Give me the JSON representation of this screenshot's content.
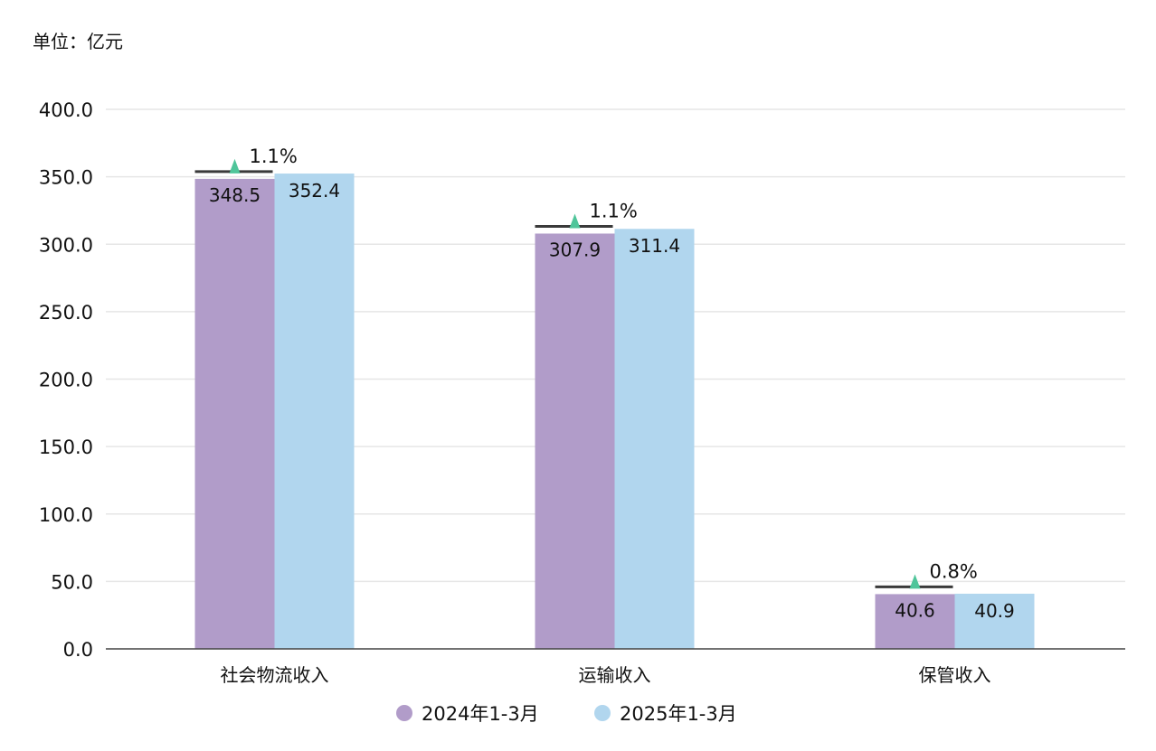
{
  "unit_label": "单位：亿元",
  "colors": {
    "series_2024": "#b19cc9",
    "series_2025": "#b1d6ee",
    "up_marker": "#4fc59a",
    "prev_line": "#3a3a3a",
    "grid": "#e6e6e6",
    "axis": "#444444"
  },
  "chart_data": {
    "type": "bar",
    "categories": [
      "社会物流收入",
      "运输收入",
      "保管收入"
    ],
    "series": [
      {
        "name": "2024年1-3月",
        "values": [
          348.5,
          307.9,
          40.6
        ],
        "labels": [
          "348.5",
          "307.9",
          "40.6"
        ]
      },
      {
        "name": "2025年1-3月",
        "values": [
          352.4,
          311.4,
          40.9
        ],
        "labels": [
          "352.4",
          "311.4",
          "40.9"
        ]
      }
    ],
    "growth": [
      "1.1%",
      "1.1%",
      "0.8%"
    ],
    "ylim": [
      0,
      400
    ],
    "yticks": [
      0,
      50,
      100,
      150,
      200,
      250,
      300,
      350,
      400
    ],
    "ytick_labels": [
      "0.0",
      "50.0",
      "100.0",
      "150.0",
      "200.0",
      "250.0",
      "300.0",
      "350.0",
      "400.0"
    ],
    "grid": true,
    "legend_position": "bottom-center"
  }
}
